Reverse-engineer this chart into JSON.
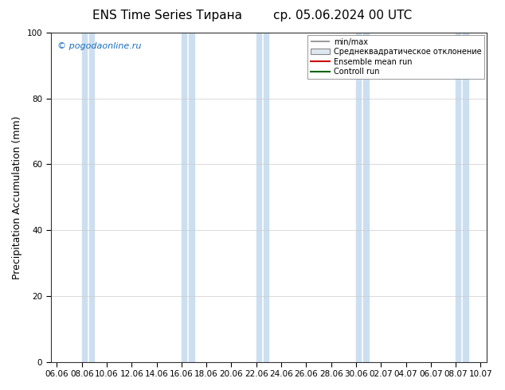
{
  "title": "ENS Time Series Тирана",
  "title2": "ср. 05.06.2024 00 UTC",
  "ylabel": "Precipitation Accumulation (mm)",
  "ylim": [
    0,
    100
  ],
  "yticks": [
    0,
    20,
    40,
    60,
    80,
    100
  ],
  "watermark": "© pogodaonline.ru",
  "background_color": "#ffffff",
  "plot_bg_color": "#ffffff",
  "band_color": "#ccdff0",
  "xtick_labels": [
    "06.06",
    "08.06",
    "10.06",
    "12.06",
    "14.06",
    "16.06",
    "18.06",
    "20.06",
    "22.06",
    "24.06",
    "26.06",
    "28.06",
    "30.06",
    "02.07",
    "04.07",
    "06.07",
    "08.07",
    "10.07"
  ],
  "legend_entries": [
    "min/max",
    "Среднеквадратическое отклонение",
    "Ensemble mean run",
    "Controll run"
  ],
  "legend_colors_line": [
    "#aaaaaa",
    "#cccccc",
    "#ff0000",
    "#008000"
  ],
  "band_indices_narrow": [
    1,
    3,
    7,
    9,
    13,
    15,
    19,
    21,
    25,
    27,
    31,
    33
  ],
  "title_fontsize": 11,
  "tick_fontsize": 7.5,
  "ylabel_fontsize": 9
}
